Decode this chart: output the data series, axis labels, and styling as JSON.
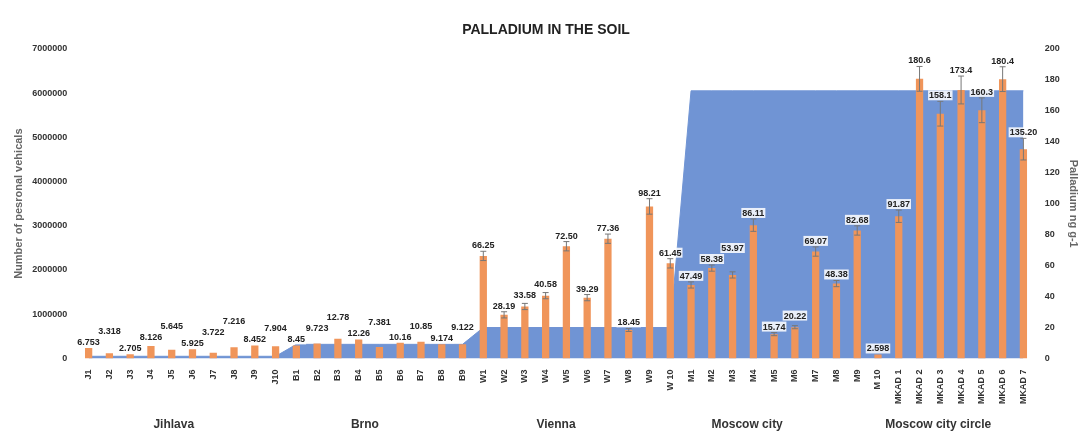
{
  "chart_data": {
    "type": "bar",
    "title": "PALLADIUM IN THE SOIL",
    "ylabel": "Number of pesronal vehicals",
    "y2label": "Palladium ng g-1",
    "categories": [
      "J1",
      "J2",
      "J3",
      "J4",
      "J5",
      "J6",
      "J7",
      "J8",
      "J9",
      "J10",
      "B1",
      "B2",
      "B3",
      "B4",
      "B5",
      "B6",
      "B7",
      "B8",
      "B9",
      "W1",
      "W2",
      "W3",
      "W4",
      "W5",
      "W6",
      "W7",
      "W8",
      "W9",
      "W 10",
      "M1",
      "M2",
      "M3",
      "M4",
      "M5",
      "M6",
      "M7",
      "M8",
      "M9",
      "M 10",
      "MKAD 1",
      "MKAD 2",
      "MKAD 3",
      "MKAD 4",
      "MKAD 5",
      "MKAD 6",
      "MKAD 7"
    ],
    "series": [
      {
        "type": "area",
        "color": "#7094d4",
        "values": [
          50000,
          50000,
          50000,
          50000,
          50000,
          50000,
          50000,
          50000,
          50000,
          50000,
          320000,
          320000,
          320000,
          320000,
          320000,
          320000,
          320000,
          320000,
          320000,
          700000,
          700000,
          700000,
          700000,
          700000,
          700000,
          700000,
          700000,
          700000,
          700000,
          6050000,
          6050000,
          6050000,
          6050000,
          6050000,
          6050000,
          6050000,
          6050000,
          6050000,
          6050000,
          6050000,
          6050000,
          6050000,
          6050000,
          6050000,
          6050000,
          6050000
        ]
      },
      {
        "axis": "y2",
        "color": "#f0955a",
        "values": [
          6.753,
          3.318,
          2.705,
          8.126,
          5.645,
          5.925,
          3.722,
          7.216,
          8.452,
          7.904,
          8.45,
          9.723,
          12.78,
          12.26,
          7.381,
          10.16,
          10.85,
          9.174,
          9.122,
          66.25,
          28.19,
          33.58,
          40.58,
          72.5,
          39.29,
          77.36,
          18.45,
          98.21,
          61.45,
          47.49,
          58.38,
          53.97,
          86.11,
          15.74,
          20.22,
          69.07,
          48.38,
          82.68,
          2.598,
          91.87,
          180.6,
          158.1,
          173.4,
          160.3,
          180.4,
          135.2
        ],
        "value_labels": [
          "6.753",
          "3.318",
          "2.705",
          "8.126",
          "5.645",
          "5.925",
          "3.722",
          "7.216",
          "8.452",
          "7.904",
          "8.45",
          "9.723",
          "12.78",
          "12.26",
          "7.381",
          "10.16",
          "10.85",
          "9.174",
          "9.122",
          "66.25",
          "28.19",
          "33.58",
          "40.58",
          "72.50",
          "39.29",
          "77.36",
          "18.45",
          "98.21",
          "61.45",
          "47.49",
          "58.38",
          "53.97",
          "86.11",
          "15.74",
          "20.22",
          "69.07",
          "48.38",
          "82.68",
          "2.598",
          "91.87",
          "180.6",
          "158.1",
          "173.4",
          "160.3",
          "180.4",
          "135.20"
        ],
        "errors": [
          null,
          null,
          null,
          null,
          null,
          null,
          null,
          null,
          null,
          null,
          null,
          null,
          null,
          null,
          null,
          null,
          null,
          null,
          null,
          3,
          2,
          2,
          2,
          3,
          2,
          3,
          1,
          5,
          3,
          2,
          2,
          2,
          4,
          1,
          1,
          3,
          2,
          3,
          null,
          4,
          8,
          8,
          9,
          8,
          8,
          7
        ]
      }
    ],
    "ylim": [
      0,
      7000000
    ],
    "yticks": [
      0,
      1000000,
      2000000,
      3000000,
      4000000,
      5000000,
      6000000,
      7000000
    ],
    "y2lim": [
      0,
      200
    ],
    "y2ticks": [
      0,
      20,
      40,
      60,
      80,
      100,
      120,
      140,
      160,
      180,
      200
    ],
    "grid": false,
    "legend": false,
    "annotations": [
      "Jihlava",
      "Brno",
      "Vienna",
      "Moscow city",
      "Moscow city circle"
    ]
  }
}
